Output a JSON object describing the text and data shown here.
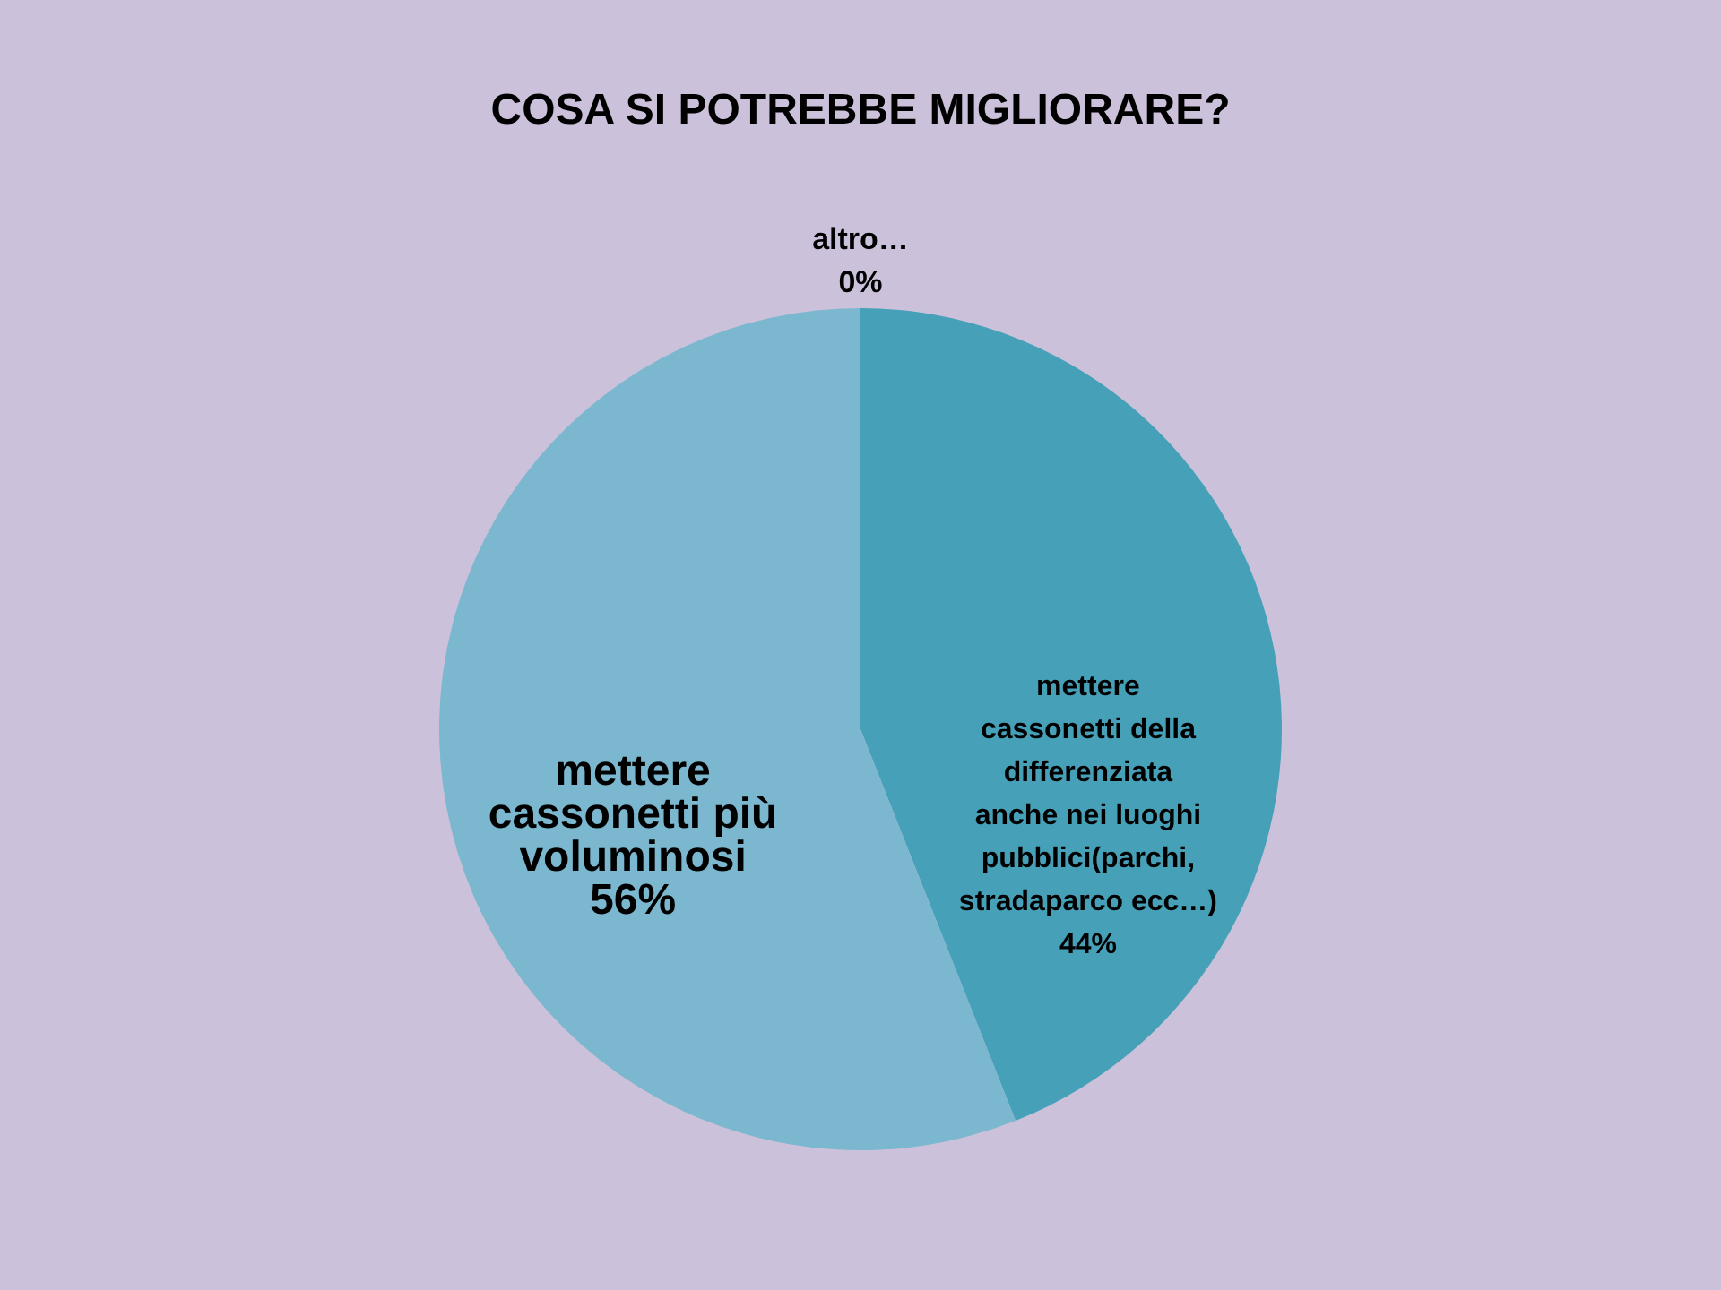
{
  "chart_data": {
    "type": "pie",
    "title": "COSA SI POTREBBE MIGLIORARE?",
    "categories": [
      "mettere cassonetti della differenziata anche nei luoghi pubblici(parchi, stradaparco ecc…)",
      "mettere cassonetti più voluminosi",
      "altro…"
    ],
    "values": [
      44,
      56,
      0
    ],
    "value_labels": [
      "44%",
      "56%",
      "0%"
    ],
    "colors": [
      "#45a0b8",
      "#7bb8cf",
      "#3a8aa0"
    ],
    "legend": false
  }
}
